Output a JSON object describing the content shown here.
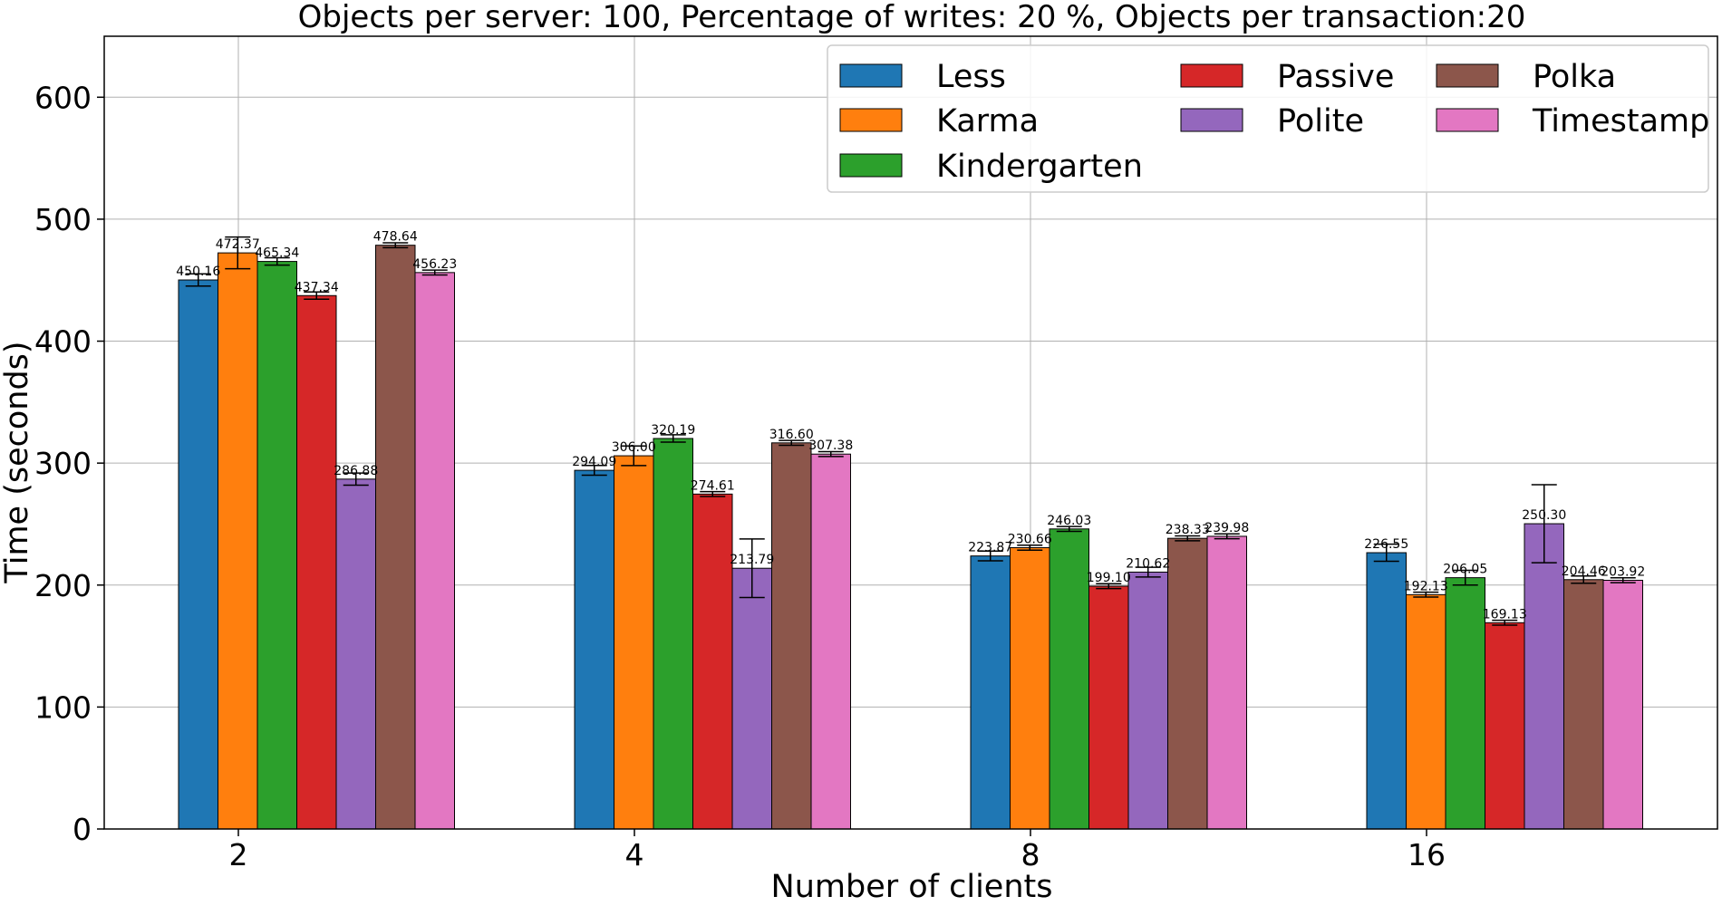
{
  "chart_data": {
    "type": "bar",
    "title": "Objects per server: 100, Percentage of writes: 20 %, Objects per transaction:20",
    "xlabel": "Number of clients",
    "ylabel": "Time (seconds)",
    "categories": [
      "2",
      "4",
      "8",
      "16"
    ],
    "ylim": [
      0,
      650
    ],
    "yticks": [
      0,
      100,
      200,
      300,
      400,
      500,
      600
    ],
    "grid": true,
    "legend_position": "top-right",
    "series": [
      {
        "name": "Less",
        "color": "#1f77b4",
        "values": [
          450.16,
          294.09,
          223.87,
          226.55
        ],
        "errors": [
          5,
          4,
          4,
          7
        ]
      },
      {
        "name": "Karma",
        "color": "#ff7f0e",
        "values": [
          472.37,
          306.0,
          230.66,
          192.13
        ],
        "errors": [
          13,
          8,
          2,
          2
        ]
      },
      {
        "name": "Kindergarten",
        "color": "#2ca02c",
        "values": [
          465.34,
          320.19,
          246.03,
          206.05
        ],
        "errors": [
          3,
          3,
          2,
          6
        ]
      },
      {
        "name": "Passive",
        "color": "#d62728",
        "values": [
          437.34,
          274.61,
          199.1,
          169.13
        ],
        "errors": [
          3,
          2,
          2,
          2
        ]
      },
      {
        "name": "Polite",
        "color": "#9467bd",
        "values": [
          286.88,
          213.79,
          210.62,
          250.3
        ],
        "errors": [
          5,
          24,
          4,
          32
        ]
      },
      {
        "name": "Polka",
        "color": "#8c564b",
        "values": [
          478.64,
          316.6,
          238.33,
          204.46
        ],
        "errors": [
          2,
          2,
          2,
          3
        ]
      },
      {
        "name": "Timestamp",
        "color": "#e377c2",
        "values": [
          456.23,
          307.38,
          239.98,
          203.92
        ],
        "errors": [
          2,
          2,
          2,
          2
        ]
      }
    ]
  }
}
